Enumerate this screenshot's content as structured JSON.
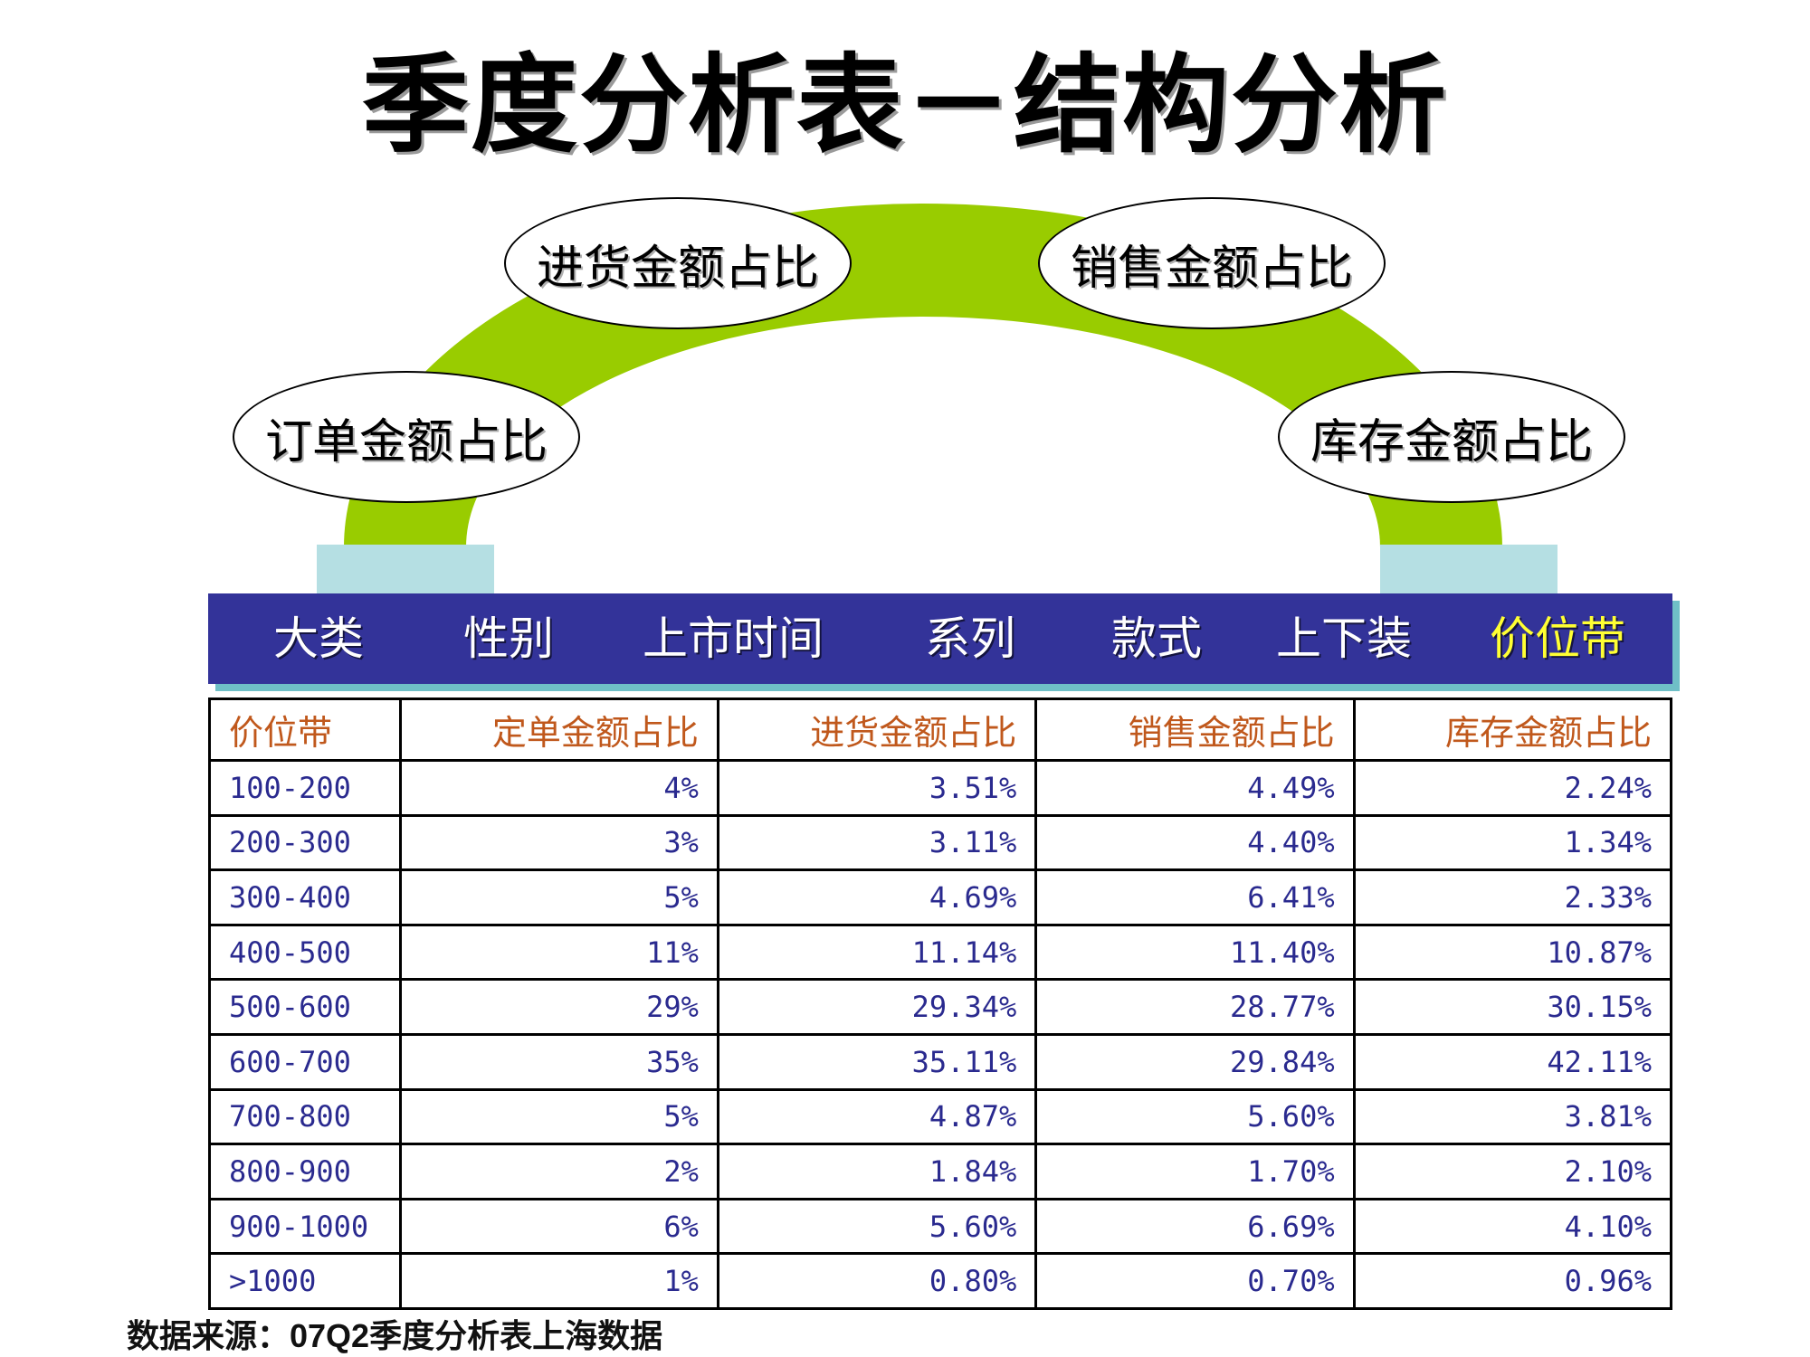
{
  "title": "季度分析表－结构分析",
  "arch_labels": {
    "order": "订单金额占比",
    "purchase": "进货金额占比",
    "sales": "销售金额占比",
    "inventory": "库存金额占比"
  },
  "dimensions": [
    {
      "label": "大类",
      "active": false
    },
    {
      "label": "性别",
      "active": false
    },
    {
      "label": "上市时间",
      "active": false
    },
    {
      "label": "系列",
      "active": false
    },
    {
      "label": "款式",
      "active": false
    },
    {
      "label": "上下装",
      "active": false
    },
    {
      "label": "价位带",
      "active": true
    }
  ],
  "table": {
    "headers": [
      "价位带",
      "定单金额占比",
      "进货金额占比",
      "销售金额占比",
      "库存金额占比"
    ],
    "rows": [
      [
        "100-200",
        "4%",
        "3.51%",
        "4.49%",
        "2.24%"
      ],
      [
        "200-300",
        "3%",
        "3.11%",
        "4.40%",
        "1.34%"
      ],
      [
        "300-400",
        "5%",
        "4.69%",
        "6.41%",
        "2.33%"
      ],
      [
        "400-500",
        "11%",
        "11.14%",
        "11.40%",
        "10.87%"
      ],
      [
        "500-600",
        "29%",
        "29.34%",
        "28.77%",
        "30.15%"
      ],
      [
        "600-700",
        "35%",
        "35.11%",
        "29.84%",
        "42.11%"
      ],
      [
        "700-800",
        "5%",
        "4.87%",
        "5.60%",
        "3.81%"
      ],
      [
        "800-900",
        "2%",
        "1.84%",
        "1.70%",
        "2.10%"
      ],
      [
        "900-1000",
        "6%",
        "5.60%",
        "6.69%",
        "4.10%"
      ],
      [
        ">1000",
        "1%",
        "0.80%",
        "0.70%",
        "0.96%"
      ]
    ]
  },
  "source": "数据来源：07Q2季度分析表上海数据",
  "colors": {
    "arch": "#99cc00",
    "pillar": "#b5dfe3",
    "dimension_bar": "#333399",
    "active_dimension": "#ffff33",
    "header_text": "#c0581c",
    "cell_text": "#2a2a8f"
  }
}
